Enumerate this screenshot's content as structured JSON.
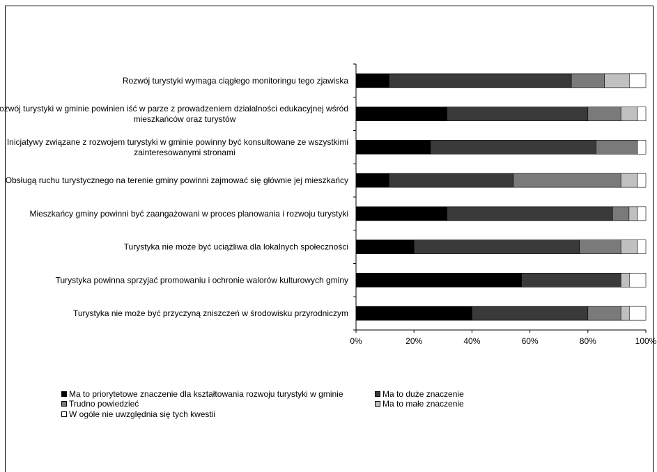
{
  "chart_data": {
    "type": "bar",
    "orientation": "horizontal",
    "stacked": "percent",
    "categories": [
      [
        "Rozwój turystyki wymaga ciągłego monitoringu tego zjawiska"
      ],
      [
        "Rozwój turystyki w gminie powinien iść w parze z prowadzeniem działalności edukacyjnej wśród",
        "mieszkańców oraz turystów"
      ],
      [
        "Inicjatywy związane z rozwojem turystyki w gminie powinny być konsultowane ze wszystkimi",
        "zainteresowanymi stronami"
      ],
      [
        "Obsługą ruchu turystycznego na terenie gminy powinni zajmować się głównie jej mieszkańcy"
      ],
      [
        "Mieszkańcy gminy powinni być zaangażowani w proces planowania i rozwoju turystyki"
      ],
      [
        "Turystyka nie może być uciążliwa dla lokalnych społeczności"
      ],
      [
        "Turystyka powinna sprzyjać promowaniu i ochronie walorów kulturowych gminy"
      ],
      [
        "Turystyka nie może być przyczyną zniszczeń w środowisku przyrodniczym"
      ]
    ],
    "series": [
      {
        "name": "Ma to priorytetowe znaczenie dla kształtowania rozwoju turystyki w gminie",
        "color": "#000000",
        "values": [
          11.4,
          31.4,
          25.7,
          11.4,
          31.4,
          20.0,
          57.1,
          40.0
        ]
      },
      {
        "name": "Ma to duże znaczenie",
        "color": "#3a3a3a",
        "values": [
          62.9,
          48.6,
          57.1,
          42.9,
          57.1,
          57.1,
          34.3,
          40.0
        ]
      },
      {
        "name": "Trudno powiedzieć",
        "color": "#7a7a7a",
        "values": [
          11.4,
          11.4,
          14.3,
          37.1,
          5.7,
          14.3,
          0.0,
          11.4
        ]
      },
      {
        "name": "Ma to małe znaczenie",
        "color": "#c0c0c0",
        "values": [
          8.6,
          5.7,
          0.0,
          5.7,
          2.9,
          5.7,
          2.9,
          2.9
        ]
      },
      {
        "name": "W ogóle nie uwzględnia się tych kwestii",
        "color": "#ffffff",
        "values": [
          5.7,
          2.9,
          2.9,
          2.9,
          2.9,
          2.9,
          5.7,
          5.7
        ]
      }
    ],
    "xlim": [
      0,
      100
    ],
    "xticks": [
      "0%",
      "20%",
      "40%",
      "60%",
      "80%",
      "100%"
    ],
    "legend_position": "bottom",
    "grid": false
  }
}
